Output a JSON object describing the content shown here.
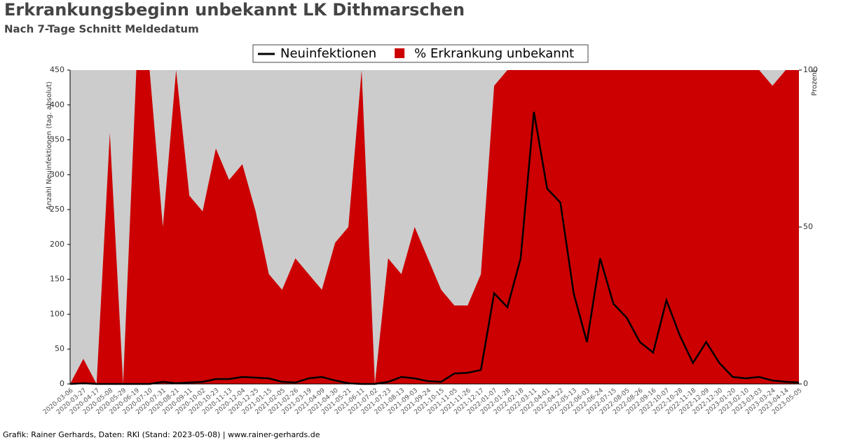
{
  "chart_data": {
    "type": "line-area",
    "title": "Erkrankungsbeginn unbekannt LK Dithmarschen",
    "subtitle": "Nach 7-Tage Schnitt Meldedatum",
    "ylabel": "Anzahl Neuinfektionen (tag. absolut)",
    "y2label": "Prozent",
    "footer": "Grafik: Rainer Gerhards, Daten: RKI (Stand: 2023-05-08) | www.rainer-gerhards.de",
    "categories": [
      "2020-03-06",
      "2020-03-27",
      "2020-04-17",
      "2020-05-08",
      "2020-05-29",
      "2020-06-19",
      "2020-07-10",
      "2020-07-31",
      "2020-08-21",
      "2020-09-11",
      "2020-10-02",
      "2020-10-23",
      "2020-11-13",
      "2020-12-04",
      "2020-12-25",
      "2021-01-15",
      "2021-02-05",
      "2021-02-26",
      "2021-03-19",
      "2021-04-09",
      "2021-04-30",
      "2021-05-21",
      "2021-06-11",
      "2021-07-02",
      "2021-07-23",
      "2021-08-13",
      "2021-09-03",
      "2021-09-24",
      "2021-10-15",
      "2021-11-05",
      "2021-11-26",
      "2021-12-17",
      "2022-01-07",
      "2022-01-28",
      "2022-02-18",
      "2022-03-11",
      "2022-04-01",
      "2022-04-22",
      "2022-05-13",
      "2022-06-03",
      "2022-06-24",
      "2022-07-15",
      "2022-08-05",
      "2022-08-26",
      "2022-09-16",
      "2022-10-07",
      "2022-10-28",
      "2022-11-18",
      "2022-12-09",
      "2022-12-30",
      "2023-01-20",
      "2023-02-10",
      "2023-03-03",
      "2023-03-24",
      "2023-04-14",
      "2023-05-05"
    ],
    "series": [
      {
        "name": "Neuinfektionen",
        "color": "#000000",
        "axis": "y",
        "values": [
          0,
          1,
          0,
          0,
          0,
          0,
          0,
          3,
          1,
          2,
          3,
          7,
          7,
          10,
          9,
          8,
          3,
          2,
          8,
          10,
          5,
          1,
          0,
          0,
          3,
          10,
          8,
          4,
          3,
          15,
          16,
          20,
          130,
          110,
          180,
          390,
          280,
          260,
          130,
          60,
          180,
          115,
          95,
          60,
          45,
          120,
          70,
          30,
          60,
          30,
          10,
          8,
          10,
          5,
          3,
          2
        ]
      },
      {
        "name": "% Erkrankung unbekannt",
        "color": "#cc0000",
        "axis": "y2",
        "values": [
          0,
          8,
          0,
          80,
          0,
          100,
          100,
          50,
          100,
          60,
          55,
          75,
          65,
          70,
          55,
          35,
          30,
          40,
          35,
          30,
          45,
          50,
          100,
          0,
          40,
          35,
          50,
          40,
          30,
          25,
          25,
          35,
          95,
          100,
          100,
          100,
          100,
          100,
          100,
          100,
          100,
          100,
          100,
          100,
          100,
          100,
          100,
          100,
          100,
          100,
          100,
          100,
          100,
          95,
          100,
          100
        ]
      }
    ],
    "ylim": [
      0,
      450
    ],
    "yticks": [
      0,
      50,
      100,
      150,
      200,
      250,
      300,
      350,
      400,
      450
    ],
    "y2lim": [
      0,
      100
    ],
    "y2ticks": [
      0,
      50,
      100
    ],
    "background": "#cccccc"
  }
}
